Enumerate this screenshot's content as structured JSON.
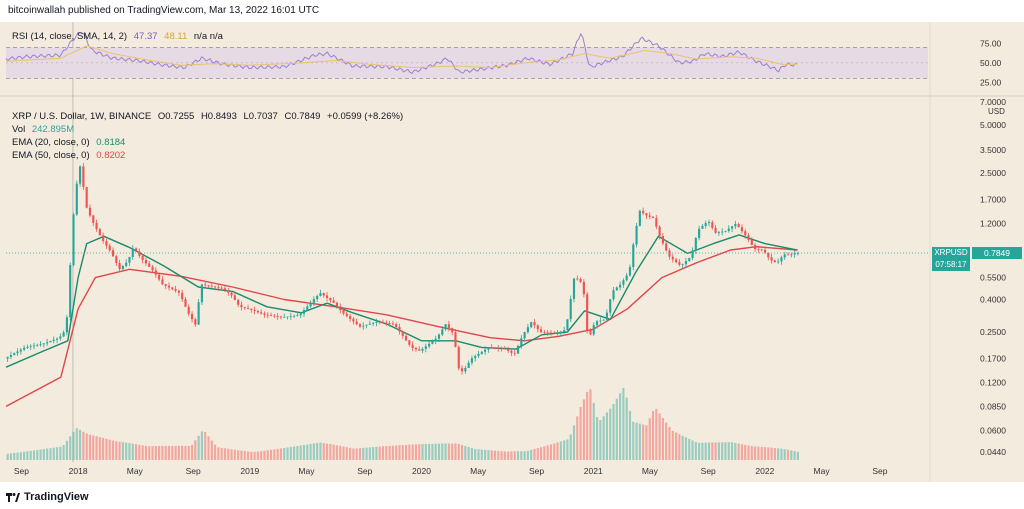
{
  "header": {
    "publisher": "bitcoinwallah published on TradingView.com, Mar 13, 2022 16:01 UTC"
  },
  "footer": {
    "brand": "TradingView"
  },
  "colors": {
    "background": "#f4ebdf",
    "up_candle": "#26a69a",
    "down_candle": "#ef5350",
    "ema20": "#1b8a6b",
    "ema50": "#e0454a",
    "rsi_line": "#9c7fd0",
    "rsi_sma": "#e9c46a",
    "rsi_band": "#e6dbe4"
  },
  "rsi_legend": {
    "label": "RSI (14, close, SMA, 14, 2)",
    "rsi": "47.37",
    "sma": "48.11",
    "extra": "n/a n/a"
  },
  "price_legend": {
    "symbol": "XRP / U.S. Dollar, 1W, BINANCE",
    "o": "O0.7255",
    "h": "H0.8493",
    "l": "L0.7037",
    "c": "C0.7849",
    "chg": "+0.0599 (+8.26%)",
    "vol_label": "Vol",
    "vol_value": "242.895M",
    "ema20_label": "EMA (20, close, 0)",
    "ema20_value": "0.8184",
    "ema50_label": "EMA (50, close, 0)",
    "ema50_value": "0.8202"
  },
  "badge": {
    "symbol": "XRPUSD",
    "price": "0.7849",
    "countdown": "07:58:17"
  },
  "chart_data": {
    "type": "candlestick",
    "symbol": "XRPUSD",
    "interval": "1W",
    "log_scale": true,
    "price_axis": {
      "ylim": [
        0.038,
        7.0
      ],
      "ticks": [
        {
          "v": 7.0,
          "label": "7.0000"
        },
        {
          "v": 5.0,
          "label": "5.0000"
        },
        {
          "v": 3.5,
          "label": "3.5000"
        },
        {
          "v": 2.5,
          "label": "2.5000"
        },
        {
          "v": 1.7,
          "label": "1.7000"
        },
        {
          "v": 1.2,
          "label": "1.2000"
        },
        {
          "v": 0.55,
          "label": "0.5500"
        },
        {
          "v": 0.4,
          "label": "0.4000"
        },
        {
          "v": 0.25,
          "label": "0.2500"
        },
        {
          "v": 0.17,
          "label": "0.1700"
        },
        {
          "v": 0.12,
          "label": "0.1200"
        },
        {
          "v": 0.085,
          "label": "0.0850"
        },
        {
          "v": 0.06,
          "label": "0.0600"
        },
        {
          "v": 0.044,
          "label": "0.0440"
        }
      ],
      "unit": "USD"
    },
    "rsi_axis": {
      "ylim": [
        15,
        95
      ],
      "ticks": [
        75,
        50,
        25
      ],
      "bands": [
        70,
        30
      ]
    },
    "time_axis": {
      "xlim": [
        2017.58,
        2022.95
      ],
      "ticks": [
        {
          "t": 2017.67,
          "label": "Sep"
        },
        {
          "t": 2018.0,
          "label": "2018"
        },
        {
          "t": 2018.33,
          "label": "May"
        },
        {
          "t": 2018.67,
          "label": "Sep"
        },
        {
          "t": 2019.0,
          "label": "2019"
        },
        {
          "t": 2019.33,
          "label": "May"
        },
        {
          "t": 2019.67,
          "label": "Sep"
        },
        {
          "t": 2020.0,
          "label": "2020"
        },
        {
          "t": 2020.33,
          "label": "May"
        },
        {
          "t": 2020.67,
          "label": "Sep"
        },
        {
          "t": 2021.0,
          "label": "2021"
        },
        {
          "t": 2021.33,
          "label": "May"
        },
        {
          "t": 2021.67,
          "label": "Sep"
        },
        {
          "t": 2022.0,
          "label": "2022"
        },
        {
          "t": 2022.33,
          "label": "May"
        },
        {
          "t": 2022.67,
          "label": "Sep"
        }
      ]
    },
    "last_price": 0.7849,
    "price_path": [
      [
        2017.58,
        0.17
      ],
      [
        2017.7,
        0.2
      ],
      [
        2017.8,
        0.21
      ],
      [
        2017.9,
        0.23
      ],
      [
        2017.94,
        0.26
      ],
      [
        2017.97,
        0.85
      ],
      [
        2017.99,
        1.8
      ],
      [
        2018.02,
        2.8
      ],
      [
        2018.06,
        1.5
      ],
      [
        2018.1,
        1.2
      ],
      [
        2018.15,
        0.95
      ],
      [
        2018.2,
        0.8
      ],
      [
        2018.25,
        0.62
      ],
      [
        2018.3,
        0.7
      ],
      [
        2018.33,
        0.85
      ],
      [
        2018.38,
        0.72
      ],
      [
        2018.45,
        0.6
      ],
      [
        2018.5,
        0.5
      ],
      [
        2018.55,
        0.47
      ],
      [
        2018.6,
        0.44
      ],
      [
        2018.65,
        0.33
      ],
      [
        2018.7,
        0.27
      ],
      [
        2018.72,
        0.5
      ],
      [
        2018.8,
        0.48
      ],
      [
        2018.85,
        0.47
      ],
      [
        2018.9,
        0.43
      ],
      [
        2018.95,
        0.36
      ],
      [
        2019.0,
        0.35
      ],
      [
        2019.1,
        0.32
      ],
      [
        2019.2,
        0.31
      ],
      [
        2019.3,
        0.32
      ],
      [
        2019.38,
        0.4
      ],
      [
        2019.42,
        0.44
      ],
      [
        2019.5,
        0.38
      ],
      [
        2019.55,
        0.33
      ],
      [
        2019.65,
        0.27
      ],
      [
        2019.75,
        0.29
      ],
      [
        2019.85,
        0.28
      ],
      [
        2019.95,
        0.2
      ],
      [
        2020.0,
        0.19
      ],
      [
        2020.1,
        0.23
      ],
      [
        2020.15,
        0.28
      ],
      [
        2020.2,
        0.24
      ],
      [
        2020.22,
        0.15
      ],
      [
        2020.25,
        0.14
      ],
      [
        2020.3,
        0.17
      ],
      [
        2020.4,
        0.2
      ],
      [
        2020.5,
        0.195
      ],
      [
        2020.55,
        0.18
      ],
      [
        2020.6,
        0.24
      ],
      [
        2020.65,
        0.29
      ],
      [
        2020.7,
        0.25
      ],
      [
        2020.8,
        0.245
      ],
      [
        2020.85,
        0.26
      ],
      [
        2020.9,
        0.56
      ],
      [
        2020.95,
        0.5
      ],
      [
        2020.98,
        0.22
      ],
      [
        2021.02,
        0.29
      ],
      [
        2021.08,
        0.3
      ],
      [
        2021.12,
        0.45
      ],
      [
        2021.17,
        0.5
      ],
      [
        2021.22,
        0.6
      ],
      [
        2021.25,
        1.0
      ],
      [
        2021.28,
        1.45
      ],
      [
        2021.32,
        1.35
      ],
      [
        2021.36,
        1.3
      ],
      [
        2021.4,
        0.98
      ],
      [
        2021.45,
        0.75
      ],
      [
        2021.52,
        0.65
      ],
      [
        2021.58,
        0.75
      ],
      [
        2021.62,
        1.1
      ],
      [
        2021.68,
        1.25
      ],
      [
        2021.72,
        1.05
      ],
      [
        2021.78,
        1.08
      ],
      [
        2021.84,
        1.2
      ],
      [
        2021.9,
        1.0
      ],
      [
        2021.95,
        0.83
      ],
      [
        2022.0,
        0.82
      ],
      [
        2022.04,
        0.71
      ],
      [
        2022.08,
        0.68
      ],
      [
        2022.12,
        0.77
      ],
      [
        2022.15,
        0.76
      ],
      [
        2022.19,
        0.7849
      ]
    ],
    "ema20": [
      [
        2017.58,
        0.15
      ],
      [
        2017.8,
        0.19
      ],
      [
        2017.94,
        0.22
      ],
      [
        2018.0,
        0.55
      ],
      [
        2018.05,
        0.9
      ],
      [
        2018.15,
        1.0
      ],
      [
        2018.3,
        0.85
      ],
      [
        2018.5,
        0.65
      ],
      [
        2018.7,
        0.48
      ],
      [
        2018.9,
        0.45
      ],
      [
        2019.1,
        0.36
      ],
      [
        2019.3,
        0.33
      ],
      [
        2019.45,
        0.38
      ],
      [
        2019.6,
        0.33
      ],
      [
        2019.8,
        0.28
      ],
      [
        2020.0,
        0.22
      ],
      [
        2020.2,
        0.22
      ],
      [
        2020.35,
        0.2
      ],
      [
        2020.55,
        0.195
      ],
      [
        2020.7,
        0.24
      ],
      [
        2020.85,
        0.25
      ],
      [
        2020.95,
        0.34
      ],
      [
        2021.1,
        0.3
      ],
      [
        2021.25,
        0.6
      ],
      [
        2021.38,
        1.0
      ],
      [
        2021.55,
        0.78
      ],
      [
        2021.7,
        0.9
      ],
      [
        2021.85,
        1.02
      ],
      [
        2022.0,
        0.9
      ],
      [
        2022.19,
        0.8184
      ]
    ],
    "ema50": [
      [
        2017.58,
        0.085
      ],
      [
        2017.9,
        0.13
      ],
      [
        2018.0,
        0.35
      ],
      [
        2018.1,
        0.55
      ],
      [
        2018.3,
        0.62
      ],
      [
        2018.6,
        0.56
      ],
      [
        2018.9,
        0.48
      ],
      [
        2019.2,
        0.4
      ],
      [
        2019.5,
        0.36
      ],
      [
        2019.8,
        0.32
      ],
      [
        2020.1,
        0.27
      ],
      [
        2020.4,
        0.23
      ],
      [
        2020.6,
        0.22
      ],
      [
        2020.8,
        0.235
      ],
      [
        2021.0,
        0.26
      ],
      [
        2021.2,
        0.35
      ],
      [
        2021.4,
        0.55
      ],
      [
        2021.6,
        0.68
      ],
      [
        2021.8,
        0.82
      ],
      [
        2021.95,
        0.86
      ],
      [
        2022.19,
        0.8202
      ]
    ],
    "rsi_path": [
      [
        2017.58,
        55
      ],
      [
        2017.7,
        58
      ],
      [
        2017.9,
        60
      ],
      [
        2017.97,
        80
      ],
      [
        2018.02,
        92
      ],
      [
        2018.08,
        66
      ],
      [
        2018.2,
        56
      ],
      [
        2018.35,
        53
      ],
      [
        2018.5,
        47
      ],
      [
        2018.62,
        44
      ],
      [
        2018.72,
        56
      ],
      [
        2018.85,
        48
      ],
      [
        2019.0,
        44
      ],
      [
        2019.2,
        45
      ],
      [
        2019.38,
        60
      ],
      [
        2019.45,
        62
      ],
      [
        2019.6,
        46
      ],
      [
        2019.8,
        45
      ],
      [
        2019.95,
        38
      ],
      [
        2020.1,
        50
      ],
      [
        2020.15,
        56
      ],
      [
        2020.22,
        38
      ],
      [
        2020.35,
        42
      ],
      [
        2020.5,
        47
      ],
      [
        2020.62,
        56
      ],
      [
        2020.75,
        48
      ],
      [
        2020.88,
        62
      ],
      [
        2020.93,
        90
      ],
      [
        2020.98,
        44
      ],
      [
        2021.08,
        52
      ],
      [
        2021.17,
        58
      ],
      [
        2021.28,
        82
      ],
      [
        2021.38,
        72
      ],
      [
        2021.5,
        50
      ],
      [
        2021.58,
        52
      ],
      [
        2021.65,
        62
      ],
      [
        2021.75,
        58
      ],
      [
        2021.85,
        64
      ],
      [
        2021.95,
        52
      ],
      [
        2022.04,
        44
      ],
      [
        2022.08,
        40
      ],
      [
        2022.12,
        48
      ],
      [
        2022.19,
        47.37
      ]
    ],
    "rsi_sma_path": [
      [
        2017.58,
        52
      ],
      [
        2017.9,
        56
      ],
      [
        2018.05,
        72
      ],
      [
        2018.2,
        62
      ],
      [
        2018.4,
        54
      ],
      [
        2018.6,
        47
      ],
      [
        2018.8,
        49
      ],
      [
        2019.0,
        47
      ],
      [
        2019.3,
        50
      ],
      [
        2019.5,
        53
      ],
      [
        2019.7,
        48
      ],
      [
        2019.95,
        44
      ],
      [
        2020.2,
        46
      ],
      [
        2020.4,
        44
      ],
      [
        2020.6,
        50
      ],
      [
        2020.8,
        54
      ],
      [
        2020.95,
        62
      ],
      [
        2021.1,
        56
      ],
      [
        2021.3,
        66
      ],
      [
        2021.45,
        62
      ],
      [
        2021.6,
        55
      ],
      [
        2021.8,
        58
      ],
      [
        2021.95,
        56
      ],
      [
        2022.1,
        48
      ],
      [
        2022.19,
        48.11
      ]
    ],
    "volume_path": [
      [
        2017.58,
        0.12
      ],
      [
        2017.9,
        0.2
      ],
      [
        2017.98,
        0.45
      ],
      [
        2018.05,
        0.35
      ],
      [
        2018.2,
        0.25
      ],
      [
        2018.4,
        0.18
      ],
      [
        2018.65,
        0.2
      ],
      [
        2018.72,
        0.45
      ],
      [
        2018.8,
        0.2
      ],
      [
        2019.0,
        0.15
      ],
      [
        2019.4,
        0.25
      ],
      [
        2019.6,
        0.15
      ],
      [
        2019.9,
        0.2
      ],
      [
        2020.2,
        0.25
      ],
      [
        2020.3,
        0.18
      ],
      [
        2020.6,
        0.15
      ],
      [
        2020.85,
        0.3
      ],
      [
        2020.92,
        0.75
      ],
      [
        2020.97,
        1.0
      ],
      [
        2021.02,
        0.5
      ],
      [
        2021.1,
        0.7
      ],
      [
        2021.17,
        0.95
      ],
      [
        2021.22,
        0.5
      ],
      [
        2021.3,
        0.45
      ],
      [
        2021.35,
        0.7
      ],
      [
        2021.45,
        0.4
      ],
      [
        2021.6,
        0.25
      ],
      [
        2021.8,
        0.3
      ],
      [
        2021.95,
        0.25
      ],
      [
        2022.1,
        0.18
      ],
      [
        2022.19,
        0.12
      ]
    ]
  }
}
